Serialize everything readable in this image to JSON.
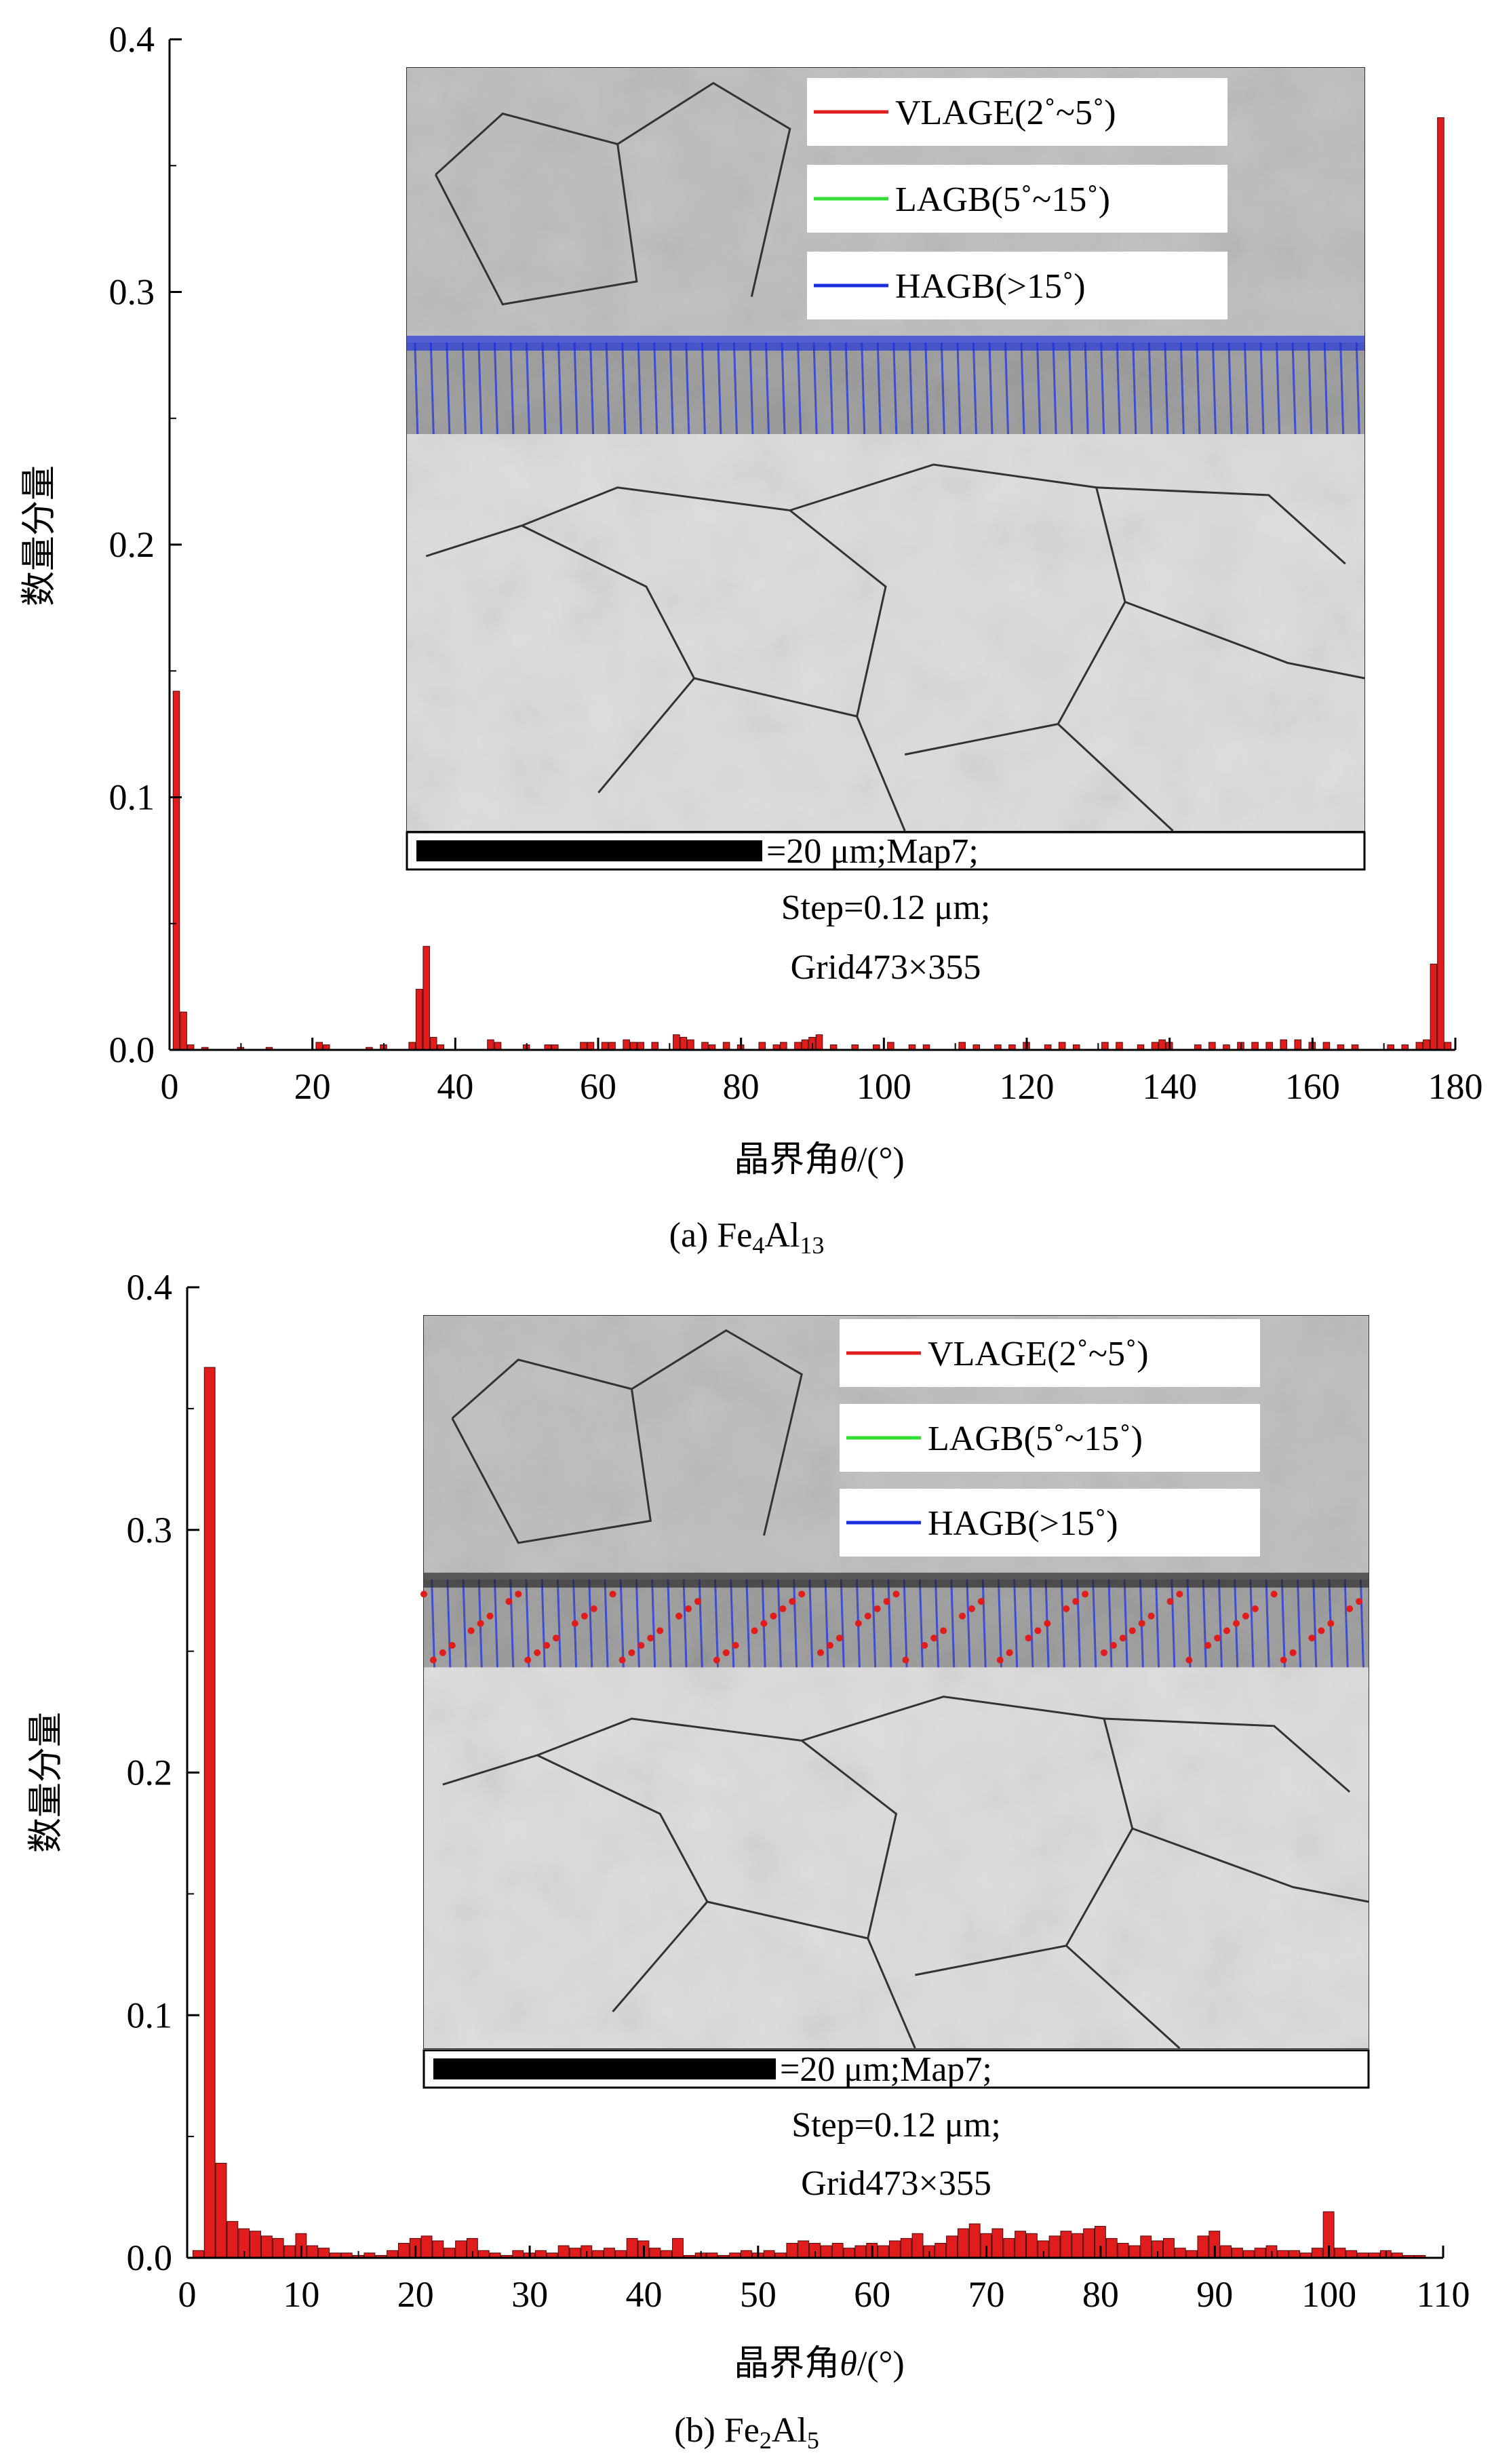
{
  "chart_data": [
    {
      "type": "bar",
      "panel_label": "(a) Fe",
      "caption_subs": [
        "4",
        "Al",
        "13"
      ],
      "xlabel": "晶界角θ/(°)",
      "ylabel": "数量分量",
      "xlim": [
        0,
        180
      ],
      "ylim": [
        0,
        0.4
      ],
      "xticks": [
        "0",
        "20",
        "40",
        "60",
        "80",
        "100",
        "120",
        "140",
        "160",
        "180"
      ],
      "xtick_values": [
        0,
        20,
        40,
        60,
        80,
        100,
        120,
        140,
        160,
        180
      ],
      "yticks": [
        "0.0",
        "0.1",
        "0.2",
        "0.3",
        "0.4"
      ],
      "ytick_values": [
        0,
        0.1,
        0.2,
        0.3,
        0.4
      ],
      "bin_width": 1,
      "bars": [
        {
          "x": 1,
          "y": 0.142
        },
        {
          "x": 2,
          "y": 0.015
        },
        {
          "x": 3,
          "y": 0.002
        },
        {
          "x": 5,
          "y": 0.001
        },
        {
          "x": 10,
          "y": 0.001
        },
        {
          "x": 14,
          "y": 0.001
        },
        {
          "x": 21,
          "y": 0.003
        },
        {
          "x": 22,
          "y": 0.002
        },
        {
          "x": 28,
          "y": 0.001
        },
        {
          "x": 30,
          "y": 0.002
        },
        {
          "x": 34,
          "y": 0.003
        },
        {
          "x": 35,
          "y": 0.024
        },
        {
          "x": 36,
          "y": 0.041
        },
        {
          "x": 37,
          "y": 0.005
        },
        {
          "x": 38,
          "y": 0.002
        },
        {
          "x": 45,
          "y": 0.004
        },
        {
          "x": 46,
          "y": 0.003
        },
        {
          "x": 50,
          "y": 0.002
        },
        {
          "x": 53,
          "y": 0.002
        },
        {
          "x": 54,
          "y": 0.002
        },
        {
          "x": 58,
          "y": 0.003
        },
        {
          "x": 59,
          "y": 0.003
        },
        {
          "x": 61,
          "y": 0.003
        },
        {
          "x": 62,
          "y": 0.003
        },
        {
          "x": 64,
          "y": 0.004
        },
        {
          "x": 65,
          "y": 0.003
        },
        {
          "x": 66,
          "y": 0.003
        },
        {
          "x": 68,
          "y": 0.003
        },
        {
          "x": 71,
          "y": 0.006
        },
        {
          "x": 72,
          "y": 0.005
        },
        {
          "x": 73,
          "y": 0.004
        },
        {
          "x": 75,
          "y": 0.003
        },
        {
          "x": 76,
          "y": 0.002
        },
        {
          "x": 78,
          "y": 0.003
        },
        {
          "x": 80,
          "y": 0.002
        },
        {
          "x": 83,
          "y": 0.003
        },
        {
          "x": 85,
          "y": 0.002
        },
        {
          "x": 86,
          "y": 0.003
        },
        {
          "x": 88,
          "y": 0.003
        },
        {
          "x": 89,
          "y": 0.004
        },
        {
          "x": 90,
          "y": 0.005
        },
        {
          "x": 91,
          "y": 0.006
        },
        {
          "x": 93,
          "y": 0.002
        },
        {
          "x": 96,
          "y": 0.002
        },
        {
          "x": 99,
          "y": 0.002
        },
        {
          "x": 101,
          "y": 0.003
        },
        {
          "x": 104,
          "y": 0.002
        },
        {
          "x": 106,
          "y": 0.002
        },
        {
          "x": 111,
          "y": 0.003
        },
        {
          "x": 113,
          "y": 0.002
        },
        {
          "x": 116,
          "y": 0.002
        },
        {
          "x": 118,
          "y": 0.002
        },
        {
          "x": 120,
          "y": 0.003
        },
        {
          "x": 123,
          "y": 0.002
        },
        {
          "x": 125,
          "y": 0.003
        },
        {
          "x": 127,
          "y": 0.002
        },
        {
          "x": 131,
          "y": 0.003
        },
        {
          "x": 133,
          "y": 0.003
        },
        {
          "x": 136,
          "y": 0.002
        },
        {
          "x": 138,
          "y": 0.003
        },
        {
          "x": 139,
          "y": 0.004
        },
        {
          "x": 140,
          "y": 0.003
        },
        {
          "x": 144,
          "y": 0.002
        },
        {
          "x": 146,
          "y": 0.003
        },
        {
          "x": 148,
          "y": 0.002
        },
        {
          "x": 150,
          "y": 0.003
        },
        {
          "x": 152,
          "y": 0.003
        },
        {
          "x": 154,
          "y": 0.003
        },
        {
          "x": 156,
          "y": 0.004
        },
        {
          "x": 158,
          "y": 0.004
        },
        {
          "x": 160,
          "y": 0.003
        },
        {
          "x": 162,
          "y": 0.003
        },
        {
          "x": 164,
          "y": 0.002
        },
        {
          "x": 166,
          "y": 0.002
        },
        {
          "x": 171,
          "y": 0.002
        },
        {
          "x": 173,
          "y": 0.002
        },
        {
          "x": 175,
          "y": 0.003
        },
        {
          "x": 176,
          "y": 0.004
        },
        {
          "x": 177,
          "y": 0.034
        },
        {
          "x": 178,
          "y": 0.369
        },
        {
          "x": 179,
          "y": 0.003
        }
      ],
      "legend": [
        "VLAGE(2˚~5˚)",
        "LAGB(5˚~15˚)",
        "HAGB(>15˚)"
      ],
      "legend_colors": [
        "#e01c1c",
        "#33dd33",
        "#1a2ee0"
      ],
      "inset_caption": [
        "=20 μm;Map7;",
        "Step=0.12 μm;",
        "Grid473×355"
      ],
      "grid": false
    },
    {
      "type": "bar",
      "panel_label": "(b) Fe",
      "caption_subs": [
        "2",
        "Al",
        "5"
      ],
      "xlabel": "晶界角θ/(°)",
      "ylabel": "数量分量",
      "xlim": [
        0,
        110
      ],
      "ylim": [
        0,
        0.4
      ],
      "xticks": [
        "0",
        "10",
        "20",
        "30",
        "40",
        "50",
        "60",
        "70",
        "80",
        "90",
        "100",
        "110"
      ],
      "xtick_values": [
        0,
        10,
        20,
        30,
        40,
        50,
        60,
        70,
        80,
        90,
        100,
        110
      ],
      "yticks": [
        "0.0",
        "0.1",
        "0.2",
        "0.3",
        "0.4"
      ],
      "ytick_values": [
        0,
        0.1,
        0.2,
        0.3,
        0.4
      ],
      "bin_width": 1,
      "bars": [
        {
          "x": 1,
          "y": 0.003
        },
        {
          "x": 2,
          "y": 0.367
        },
        {
          "x": 3,
          "y": 0.039
        },
        {
          "x": 4,
          "y": 0.015
        },
        {
          "x": 5,
          "y": 0.012
        },
        {
          "x": 6,
          "y": 0.011
        },
        {
          "x": 7,
          "y": 0.009
        },
        {
          "x": 8,
          "y": 0.008
        },
        {
          "x": 9,
          "y": 0.005
        },
        {
          "x": 10,
          "y": 0.01
        },
        {
          "x": 11,
          "y": 0.005
        },
        {
          "x": 12,
          "y": 0.004
        },
        {
          "x": 13,
          "y": 0.002
        },
        {
          "x": 14,
          "y": 0.002
        },
        {
          "x": 15,
          "y": 0.001
        },
        {
          "x": 16,
          "y": 0.002
        },
        {
          "x": 17,
          "y": 0.001
        },
        {
          "x": 18,
          "y": 0.003
        },
        {
          "x": 19,
          "y": 0.006
        },
        {
          "x": 20,
          "y": 0.008
        },
        {
          "x": 21,
          "y": 0.009
        },
        {
          "x": 22,
          "y": 0.007
        },
        {
          "x": 23,
          "y": 0.004
        },
        {
          "x": 24,
          "y": 0.007
        },
        {
          "x": 25,
          "y": 0.008
        },
        {
          "x": 26,
          "y": 0.003
        },
        {
          "x": 27,
          "y": 0.002
        },
        {
          "x": 28,
          "y": 0.001
        },
        {
          "x": 29,
          "y": 0.003
        },
        {
          "x": 30,
          "y": 0.002
        },
        {
          "x": 31,
          "y": 0.003
        },
        {
          "x": 32,
          "y": 0.002
        },
        {
          "x": 33,
          "y": 0.005
        },
        {
          "x": 34,
          "y": 0.004
        },
        {
          "x": 35,
          "y": 0.005
        },
        {
          "x": 36,
          "y": 0.003
        },
        {
          "x": 37,
          "y": 0.004
        },
        {
          "x": 38,
          "y": 0.003
        },
        {
          "x": 39,
          "y": 0.008
        },
        {
          "x": 40,
          "y": 0.007
        },
        {
          "x": 41,
          "y": 0.004
        },
        {
          "x": 42,
          "y": 0.003
        },
        {
          "x": 43,
          "y": 0.008
        },
        {
          "x": 44,
          "y": 0.001
        },
        {
          "x": 45,
          "y": 0.002
        },
        {
          "x": 46,
          "y": 0.002
        },
        {
          "x": 47,
          "y": 0.001
        },
        {
          "x": 48,
          "y": 0.002
        },
        {
          "x": 49,
          "y": 0.003
        },
        {
          "x": 50,
          "y": 0.002
        },
        {
          "x": 51,
          "y": 0.003
        },
        {
          "x": 52,
          "y": 0.002
        },
        {
          "x": 53,
          "y": 0.006
        },
        {
          "x": 54,
          "y": 0.007
        },
        {
          "x": 55,
          "y": 0.006
        },
        {
          "x": 56,
          "y": 0.005
        },
        {
          "x": 57,
          "y": 0.006
        },
        {
          "x": 58,
          "y": 0.004
        },
        {
          "x": 59,
          "y": 0.005
        },
        {
          "x": 60,
          "y": 0.006
        },
        {
          "x": 61,
          "y": 0.005
        },
        {
          "x": 62,
          "y": 0.007
        },
        {
          "x": 63,
          "y": 0.008
        },
        {
          "x": 64,
          "y": 0.01
        },
        {
          "x": 65,
          "y": 0.005
        },
        {
          "x": 66,
          "y": 0.006
        },
        {
          "x": 67,
          "y": 0.009
        },
        {
          "x": 68,
          "y": 0.012
        },
        {
          "x": 69,
          "y": 0.014
        },
        {
          "x": 70,
          "y": 0.01
        },
        {
          "x": 71,
          "y": 0.012
        },
        {
          "x": 72,
          "y": 0.008
        },
        {
          "x": 73,
          "y": 0.011
        },
        {
          "x": 74,
          "y": 0.01
        },
        {
          "x": 75,
          "y": 0.007
        },
        {
          "x": 76,
          "y": 0.009
        },
        {
          "x": 77,
          "y": 0.011
        },
        {
          "x": 78,
          "y": 0.01
        },
        {
          "x": 79,
          "y": 0.012
        },
        {
          "x": 80,
          "y": 0.013
        },
        {
          "x": 81,
          "y": 0.008
        },
        {
          "x": 82,
          "y": 0.006
        },
        {
          "x": 83,
          "y": 0.005
        },
        {
          "x": 84,
          "y": 0.009
        },
        {
          "x": 85,
          "y": 0.007
        },
        {
          "x": 86,
          "y": 0.008
        },
        {
          "x": 87,
          "y": 0.004
        },
        {
          "x": 88,
          "y": 0.003
        },
        {
          "x": 89,
          "y": 0.009
        },
        {
          "x": 90,
          "y": 0.011
        },
        {
          "x": 91,
          "y": 0.005
        },
        {
          "x": 92,
          "y": 0.004
        },
        {
          "x": 93,
          "y": 0.003
        },
        {
          "x": 94,
          "y": 0.004
        },
        {
          "x": 95,
          "y": 0.005
        },
        {
          "x": 96,
          "y": 0.003
        },
        {
          "x": 97,
          "y": 0.003
        },
        {
          "x": 98,
          "y": 0.002
        },
        {
          "x": 99,
          "y": 0.004
        },
        {
          "x": 100,
          "y": 0.019
        },
        {
          "x": 101,
          "y": 0.004
        },
        {
          "x": 102,
          "y": 0.003
        },
        {
          "x": 103,
          "y": 0.002
        },
        {
          "x": 104,
          "y": 0.002
        },
        {
          "x": 105,
          "y": 0.003
        },
        {
          "x": 106,
          "y": 0.002
        },
        {
          "x": 107,
          "y": 0.001
        },
        {
          "x": 108,
          "y": 0.001
        }
      ],
      "legend": [
        "VLAGE(2˚~5˚)",
        "LAGB(5˚~15˚)",
        "HAGB(>15˚)"
      ],
      "legend_colors": [
        "#e01c1c",
        "#33dd33",
        "#1a2ee0"
      ],
      "inset_caption": [
        "=20 μm;Map7;",
        "Step=0.12 μm;",
        "Grid473×355"
      ],
      "grid": false
    }
  ],
  "colors": {
    "bar_fill": "#e01c1c",
    "bar_stroke": "#4a0a0a",
    "axis": "#000000"
  }
}
